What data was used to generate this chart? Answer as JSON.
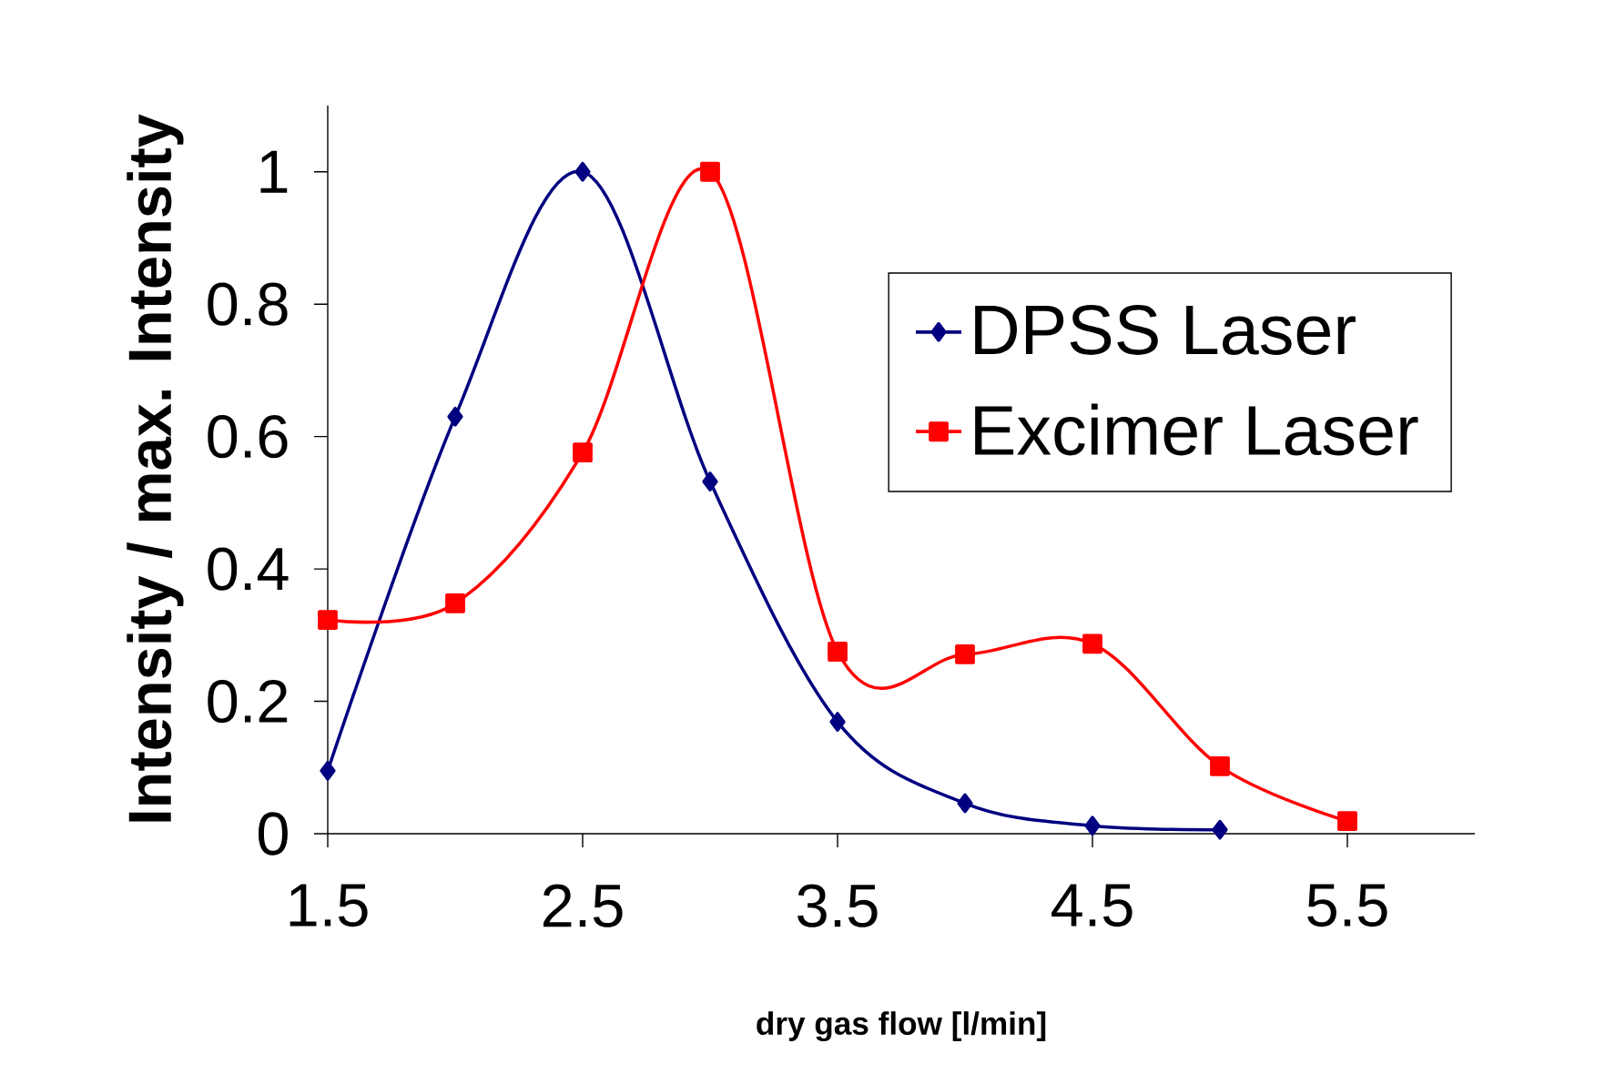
{
  "chart_data": {
    "type": "line",
    "xlabel": "dry gas flow [l/min]",
    "ylabel": "Intensity / max. Intensity",
    "xlim": [
      1.5,
      6.0
    ],
    "ylim": [
      0,
      1.1
    ],
    "xticks": [
      1.5,
      2.5,
      3.5,
      4.5,
      5.5
    ],
    "yticks": [
      0,
      0.2,
      0.4,
      0.6,
      0.8,
      1
    ],
    "grid": false,
    "legend": "right",
    "series": [
      {
        "name": "DPSS Laser",
        "color": "#000080",
        "marker": "diamond",
        "x": [
          1.5,
          2.0,
          2.5,
          3.0,
          3.5,
          4.0,
          4.5,
          5.0
        ],
        "values": [
          0.095,
          0.63,
          1.0,
          0.532,
          0.169,
          0.046,
          0.012,
          0.006
        ]
      },
      {
        "name": "Excimer Laser",
        "color": "#ff0000",
        "marker": "square",
        "x": [
          1.5,
          2.0,
          2.5,
          3.0,
          3.5,
          4.0,
          4.5,
          5.0,
          5.5
        ],
        "values": [
          0.323,
          0.348,
          0.576,
          1.0,
          0.275,
          0.271,
          0.287,
          0.102,
          0.019
        ]
      }
    ]
  }
}
